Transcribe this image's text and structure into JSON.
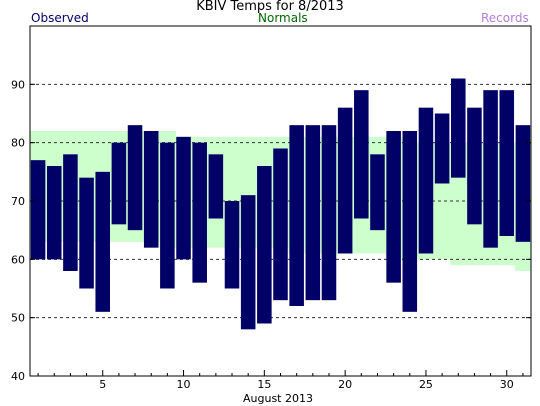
{
  "chart_data": {
    "type": "bar",
    "title": "KBIV Temps for 8/2013",
    "xlabel": "August 2013",
    "ylabel": "",
    "legend": [
      "Observed",
      "Normals",
      "Records"
    ],
    "legend_placement": "top",
    "ylim": [
      40,
      100
    ],
    "yticks": [
      40,
      50,
      60,
      70,
      80,
      90
    ],
    "xlim": [
      0.5,
      31.5
    ],
    "xticks": [
      5,
      10,
      15,
      20,
      25,
      30
    ],
    "grid": true,
    "days": [
      1,
      2,
      3,
      4,
      5,
      6,
      7,
      8,
      9,
      10,
      11,
      12,
      13,
      14,
      15,
      16,
      17,
      18,
      19,
      20,
      21,
      22,
      23,
      24,
      25,
      26,
      27,
      28,
      29,
      30,
      31
    ],
    "observed_high": [
      77,
      76,
      78,
      74,
      75,
      80,
      83,
      82,
      80,
      81,
      80,
      78,
      70,
      71,
      76,
      79,
      83,
      83,
      83,
      86,
      89,
      78,
      82,
      82,
      86,
      85,
      91,
      86,
      89,
      89,
      83
    ],
    "observed_low": [
      60,
      60,
      58,
      55,
      51,
      66,
      65,
      62,
      55,
      60,
      56,
      67,
      55,
      48,
      49,
      53,
      52,
      53,
      53,
      61,
      67,
      65,
      56,
      51,
      61,
      73,
      74,
      66,
      62,
      64,
      63
    ],
    "normal_high": [
      82,
      82,
      82,
      82,
      82,
      82,
      82,
      82,
      82,
      81,
      81,
      81,
      81,
      81,
      81,
      81,
      81,
      81,
      81,
      81,
      81,
      81,
      81,
      80,
      80,
      80,
      80,
      80,
      80,
      80,
      80
    ],
    "normal_low": [
      63,
      63,
      63,
      63,
      63,
      63,
      63,
      63,
      62,
      62,
      62,
      62,
      62,
      62,
      62,
      62,
      61,
      61,
      61,
      61,
      61,
      61,
      60,
      60,
      60,
      60,
      59,
      59,
      59,
      59,
      58
    ],
    "colors": {
      "observed": "#000066",
      "normals": "#ccffcc",
      "normals_text": "#006600",
      "records_text": "#b57edc"
    }
  }
}
